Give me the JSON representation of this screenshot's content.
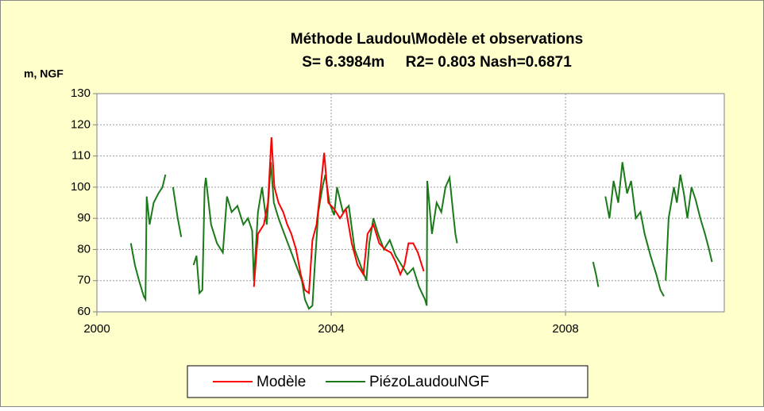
{
  "chart_data": {
    "type": "line",
    "title": "Méthode Laudou\\Modèle et observations",
    "subtitle": "S= 6.3984m     R2= 0.803 Nash=0.6871",
    "y_label": "m, NGF",
    "xlim": [
      2000,
      2010.71
    ],
    "xticks": [
      2000,
      2004,
      2008
    ],
    "ylim": [
      60,
      130
    ],
    "yticks": [
      60,
      70,
      80,
      90,
      100,
      110,
      120,
      130
    ],
    "grid": true,
    "legend": "bottom",
    "series": [
      {
        "name": "Modèle",
        "color": "#ff0000",
        "x": [
          2002.68,
          2002.75,
          2002.85,
          2002.92,
          2002.98,
          2003.03,
          2003.1,
          2003.18,
          2003.25,
          2003.32,
          2003.4,
          2003.48,
          2003.55,
          2003.62,
          2003.68,
          2003.75,
          2003.82,
          2003.88,
          2003.95,
          2004.05,
          2004.15,
          2004.25,
          2004.35,
          2004.45,
          2004.55,
          2004.62,
          2004.72,
          2004.82,
          2004.92,
          2005.02,
          2005.1,
          2005.18,
          2005.25,
          2005.32,
          2005.4,
          2005.48,
          2005.58
        ],
        "values": [
          68,
          85,
          88,
          95,
          116,
          100,
          95,
          92,
          88,
          85,
          80,
          72,
          67,
          66,
          83,
          88,
          100,
          111,
          95,
          93,
          90,
          93,
          82,
          75,
          72,
          85,
          88,
          82,
          80,
          79,
          76,
          72,
          75,
          82,
          82,
          79,
          73
        ]
      },
      {
        "name": "PiézoLaudouNGF",
        "color": "#1a7a1a",
        "x": [
          2000.58,
          2000.65,
          2000.72,
          2000.8,
          2000.83,
          2000.85,
          2000.9,
          2000.97,
          2001.05,
          2001.12,
          2001.17,
          null,
          2001.3,
          2001.38,
          2001.44,
          null,
          2001.65,
          2001.7,
          2001.75,
          2001.8,
          2001.84,
          2001.86,
          2001.95,
          2002.05,
          2002.15,
          2002.22,
          2002.3,
          2002.4,
          2002.5,
          2002.58,
          2002.65,
          2002.68,
          2002.75,
          2002.82,
          2002.9,
          2002.97,
          2003.02,
          2003.1,
          2003.2,
          2003.3,
          2003.4,
          2003.5,
          2003.55,
          2003.62,
          2003.68,
          2003.72,
          2003.78,
          2003.85,
          2003.9,
          2003.97,
          2004.05,
          2004.1,
          2004.2,
          2004.3,
          2004.4,
          2004.5,
          2004.6,
          2004.65,
          2004.72,
          2004.8,
          2004.9,
          2005.0,
          2005.1,
          2005.2,
          2005.3,
          2005.4,
          2005.5,
          2005.6,
          2005.63,
          2005.64,
          2005.72,
          2005.8,
          2005.88,
          2005.95,
          2006.02,
          2006.08,
          2006.12,
          2006.15,
          null,
          2008.47,
          2008.52,
          2008.56,
          null,
          2008.68,
          2008.75,
          2008.82,
          2008.9,
          2008.97,
          2009.05,
          2009.12,
          2009.2,
          2009.28,
          2009.35,
          2009.45,
          2009.55,
          2009.62,
          2009.68,
          null,
          2009.71,
          2009.76,
          2009.85,
          2009.9,
          2009.96,
          2010.02,
          2010.08,
          2010.15,
          2010.22,
          2010.3,
          2010.38,
          2010.45,
          2010.5
        ],
        "values": [
          82,
          75,
          70,
          65,
          64,
          97,
          88,
          95,
          98,
          100,
          104,
          null,
          100,
          90,
          84,
          null,
          75,
          78,
          66,
          67,
          100,
          103,
          88,
          82,
          79,
          97,
          92,
          94,
          88,
          90,
          86,
          70,
          92,
          100,
          88,
          108,
          95,
          90,
          85,
          80,
          75,
          70,
          64,
          61,
          62,
          75,
          92,
          100,
          104,
          95,
          91,
          100,
          92,
          94,
          80,
          75,
          70,
          82,
          90,
          85,
          80,
          83,
          78,
          75,
          72,
          74,
          68,
          64,
          62,
          102,
          85,
          95,
          92,
          100,
          103,
          92,
          85,
          82,
          null,
          76,
          72,
          68,
          null,
          97,
          90,
          102,
          95,
          108,
          98,
          102,
          90,
          92,
          85,
          78,
          72,
          67,
          65,
          null,
          70,
          90,
          100,
          95,
          104,
          98,
          90,
          100,
          96,
          90,
          85,
          80,
          76
        ]
      }
    ]
  }
}
